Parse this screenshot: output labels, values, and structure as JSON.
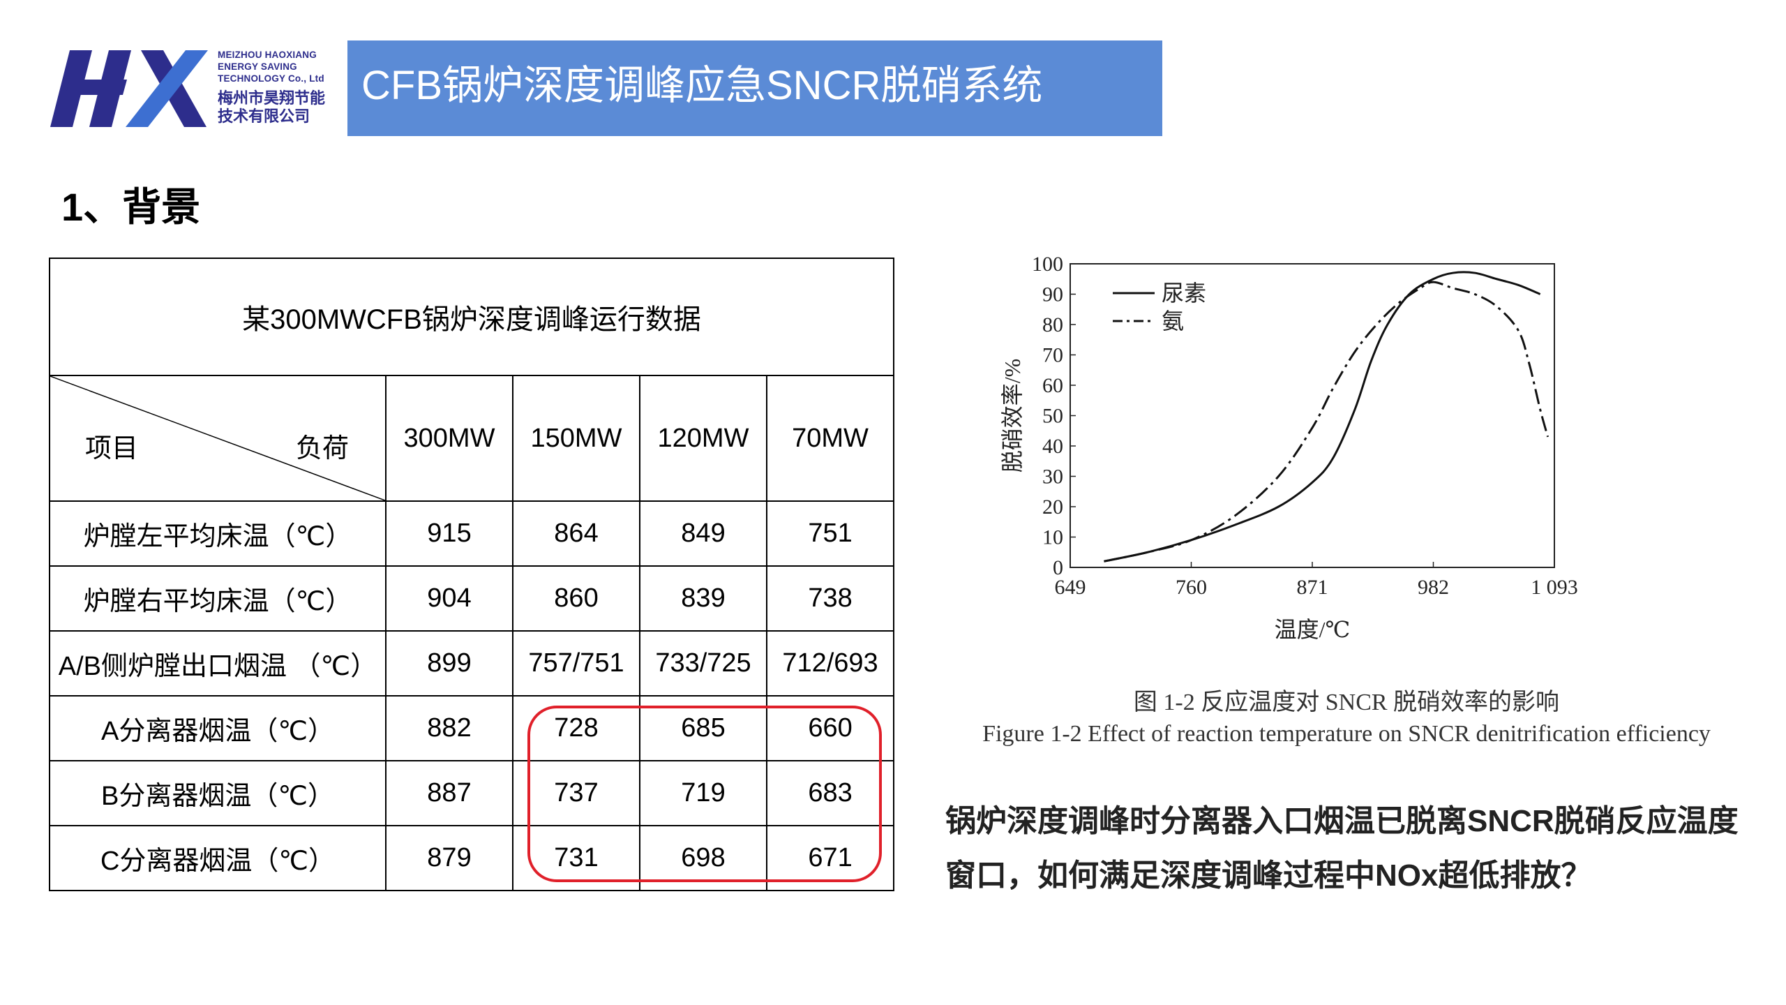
{
  "header": {
    "logo": {
      "en_lines": [
        "MEIZHOU HAOXIANG",
        "ENERGY SAVING",
        "TECHNOLOGY Co., Ltd"
      ],
      "cn_lines": [
        "梅州市昊翔节能",
        "技术有限公司"
      ],
      "color": "#2d2d8c"
    },
    "title": "CFB锅炉深度调峰应急SNCR脱硝系统",
    "title_bg": "#5b8bd6"
  },
  "section_heading": "1、背景",
  "table": {
    "caption": "某300MWCFB锅炉深度调峰运行数据",
    "corner_item": "项目",
    "corner_load": "负荷",
    "columns": [
      "300MW",
      "150MW",
      "120MW",
      "70MW"
    ],
    "rows": [
      {
        "label": "炉膛左平均床温（℃）",
        "values": [
          "915",
          "864",
          "849",
          "751"
        ]
      },
      {
        "label": "炉膛右平均床温（℃）",
        "values": [
          "904",
          "860",
          "839",
          "738"
        ]
      },
      {
        "label": "A/B侧炉膛出口烟温 （℃）",
        "values": [
          "899",
          "757/751",
          "733/725",
          "712/693"
        ]
      },
      {
        "label": "A分离器烟温（℃）",
        "values": [
          "882",
          "728",
          "685",
          "660"
        ]
      },
      {
        "label": "B分离器烟温（℃）",
        "values": [
          "887",
          "737",
          "719",
          "683"
        ]
      },
      {
        "label": "C分离器烟温（℃）",
        "values": [
          "879",
          "731",
          "698",
          "671"
        ]
      }
    ],
    "highlight_color": "#e0202a"
  },
  "chart_data": {
    "type": "line",
    "title": "",
    "xlabel": "温度/℃",
    "ylabel": "脱硝效率/%",
    "xlim": [
      649,
      1093
    ],
    "ylim": [
      0,
      100
    ],
    "x_ticks": [
      "649",
      "760",
      "871",
      "982",
      "1 093"
    ],
    "y_ticks": [
      "0",
      "10",
      "20",
      "30",
      "40",
      "50",
      "60",
      "70",
      "80",
      "90",
      "100"
    ],
    "legend_position": "top-left",
    "series": [
      {
        "name": "尿素",
        "style": "solid",
        "x": [
          680,
          720,
          760,
          800,
          840,
          871,
          890,
          910,
          925,
          940,
          960,
          982,
          1000,
          1020,
          1040,
          1060,
          1080
        ],
        "y": [
          2,
          5,
          9,
          14,
          20,
          28,
          36,
          52,
          68,
          80,
          90,
          95,
          97,
          97,
          95,
          93,
          90
        ]
      },
      {
        "name": "氨",
        "style": "dash-dot",
        "x": [
          680,
          720,
          760,
          800,
          840,
          871,
          890,
          910,
          930,
          950,
          970,
          982,
          1000,
          1020,
          1040,
          1060,
          1070,
          1080,
          1087
        ],
        "y": [
          2,
          5,
          9,
          17,
          30,
          46,
          59,
          71,
          80,
          87,
          92,
          94,
          92,
          90,
          86,
          78,
          67,
          52,
          43
        ]
      }
    ]
  },
  "figure_caption_cn": "图 1-2  反应温度对 SNCR 脱硝效率的影响",
  "figure_caption_en": "Figure 1-2 Effect of reaction temperature on SNCR denitrification efficiency",
  "conclusion": "锅炉深度调峰时分离器入口烟温已脱离SNCR脱硝反应温度窗口，如何满足深度调峰过程中NOx超低排放？"
}
